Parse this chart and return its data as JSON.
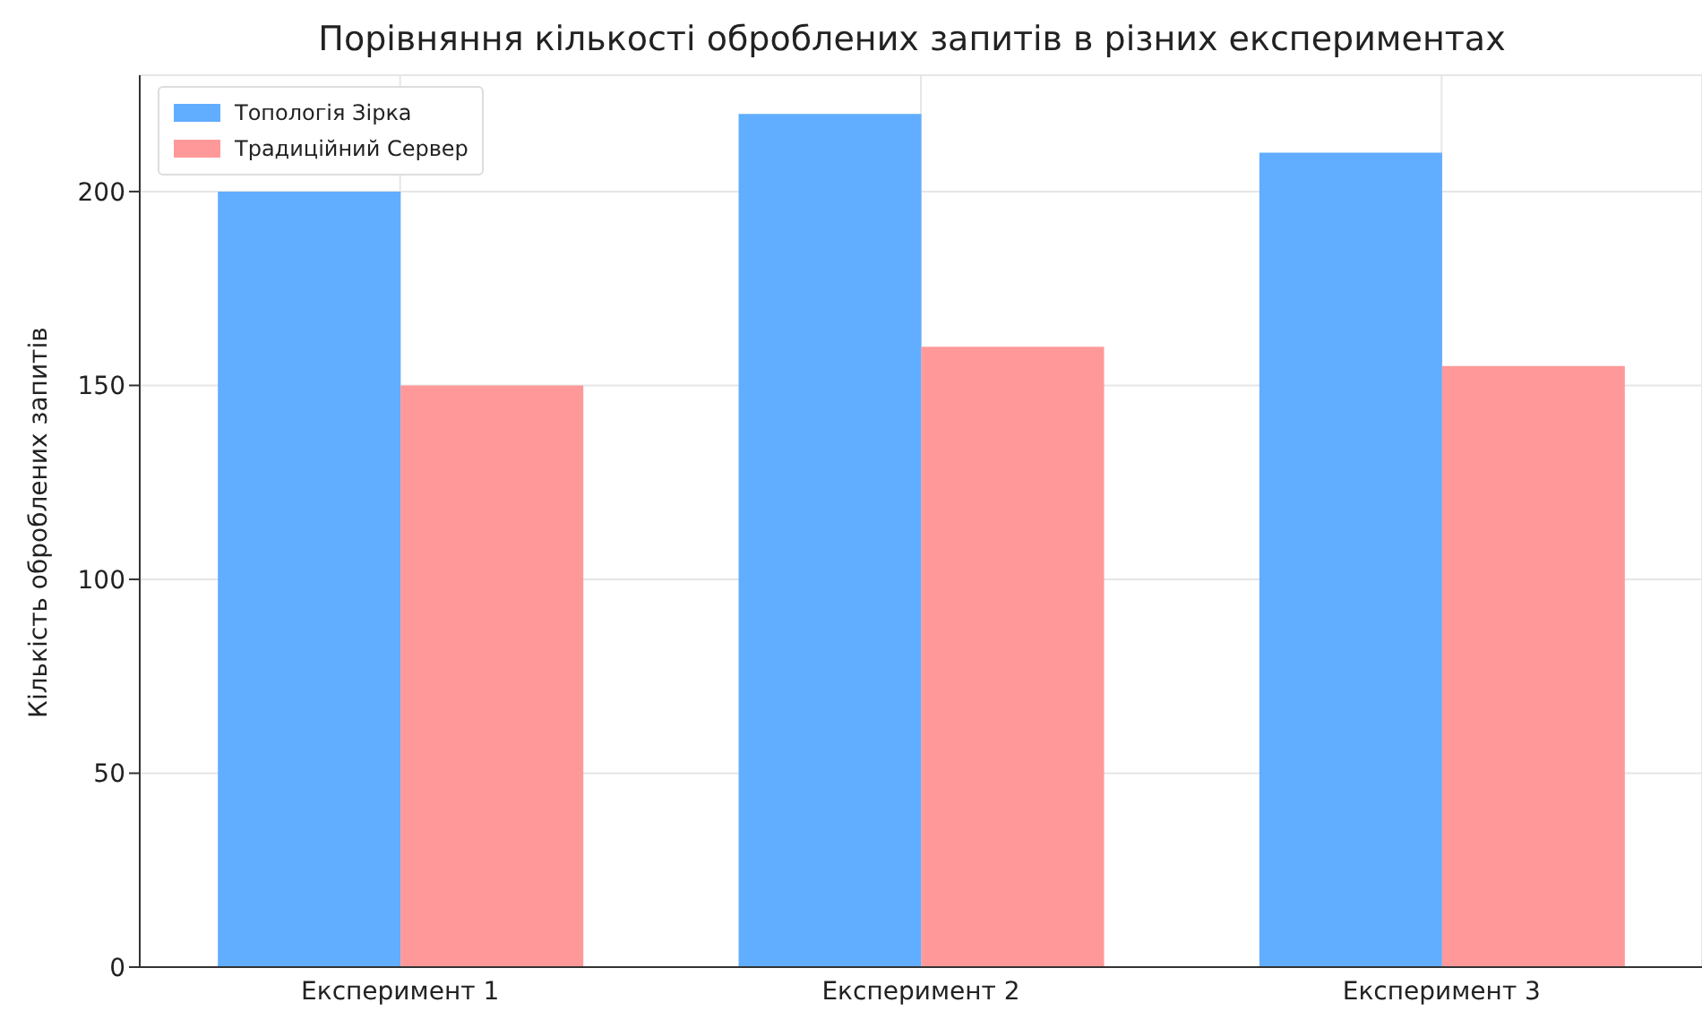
{
  "chart_data": {
    "type": "bar",
    "title": "Порівняння кількості оброблених запитів в різних експериментах",
    "ylabel": "Кількість оброблених запитів",
    "categories": [
      "Експеримент 1",
      "Експеримент 2",
      "Експеримент 3"
    ],
    "series": [
      {
        "name": "Топологія Зірка",
        "color": "#61adff",
        "values": [
          200,
          220,
          210
        ]
      },
      {
        "name": "Традиційний Сервер",
        "color": "#ff9999",
        "values": [
          150,
          160,
          155
        ]
      }
    ],
    "ylim": [
      0,
      230
    ],
    "yticks": [
      0,
      50,
      100,
      150,
      200
    ],
    "grid": true,
    "legend": "top left"
  }
}
